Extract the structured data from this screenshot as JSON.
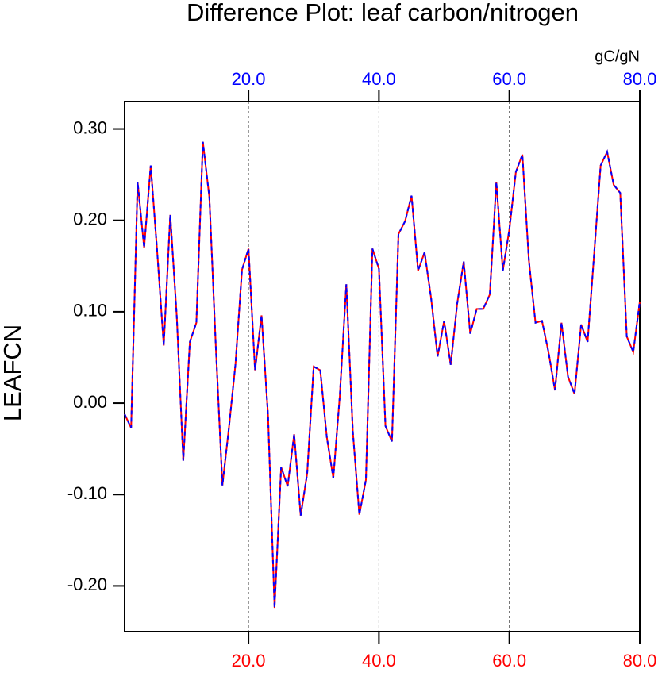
{
  "chart_data": {
    "type": "line",
    "title": "Difference Plot: leaf carbon/nitrogen",
    "units_label": "gC/gN",
    "y_label": "LEAFCN",
    "x": [
      1,
      2,
      3,
      4,
      5,
      6,
      7,
      8,
      9,
      10,
      11,
      12,
      13,
      14,
      15,
      16,
      17,
      18,
      19,
      20,
      21,
      22,
      23,
      24,
      25,
      26,
      27,
      28,
      29,
      30,
      31,
      32,
      33,
      34,
      35,
      36,
      37,
      38,
      39,
      40,
      41,
      42,
      43,
      44,
      45,
      46,
      47,
      48,
      49,
      50,
      51,
      52,
      53,
      54,
      55,
      56,
      57,
      58,
      59,
      60,
      61,
      62,
      63,
      64,
      65,
      66,
      67,
      68,
      69,
      70,
      71,
      72,
      73,
      74,
      75,
      76,
      77,
      78,
      79,
      80
    ],
    "series": [
      {
        "color": "#ff0000",
        "dash": false,
        "values": [
          -0.012,
          -0.027,
          0.242,
          0.17,
          0.26,
          0.165,
          0.063,
          0.206,
          0.095,
          -0.063,
          0.067,
          0.088,
          0.286,
          0.225,
          0.06,
          -0.09,
          -0.027,
          0.043,
          0.146,
          0.169,
          0.036,
          0.096,
          -0.014,
          -0.224,
          -0.07,
          -0.091,
          -0.034,
          -0.123,
          -0.077,
          0.04,
          0.036,
          -0.037,
          -0.082,
          0.008,
          0.13,
          -0.031,
          -0.122,
          -0.084,
          0.169,
          0.147,
          -0.025,
          -0.042,
          0.185,
          0.199,
          0.227,
          0.145,
          0.165,
          0.115,
          0.051,
          0.09,
          0.042,
          0.109,
          0.155,
          0.076,
          0.103,
          0.103,
          0.119,
          0.242,
          0.145,
          0.19,
          0.253,
          0.272,
          0.156,
          0.088,
          0.09,
          0.056,
          0.014,
          0.088,
          0.029,
          0.01,
          0.086,
          0.067,
          0.163,
          0.26,
          0.275,
          0.239,
          0.23,
          0.073,
          0.056,
          0.111
        ]
      },
      {
        "color": "#0000ff",
        "dash": true,
        "values": [
          -0.012,
          -0.027,
          0.242,
          0.17,
          0.26,
          0.165,
          0.063,
          0.206,
          0.095,
          -0.063,
          0.067,
          0.088,
          0.286,
          0.225,
          0.06,
          -0.09,
          -0.027,
          0.043,
          0.146,
          0.169,
          0.036,
          0.096,
          -0.014,
          -0.224,
          -0.07,
          -0.091,
          -0.034,
          -0.123,
          -0.077,
          0.04,
          0.036,
          -0.037,
          -0.082,
          0.008,
          0.13,
          -0.031,
          -0.122,
          -0.084,
          0.169,
          0.147,
          -0.025,
          -0.042,
          0.185,
          0.199,
          0.227,
          0.145,
          0.165,
          0.115,
          0.051,
          0.09,
          0.042,
          0.109,
          0.155,
          0.076,
          0.103,
          0.103,
          0.119,
          0.242,
          0.145,
          0.19,
          0.253,
          0.272,
          0.156,
          0.088,
          0.09,
          0.056,
          0.014,
          0.088,
          0.029,
          0.01,
          0.086,
          0.067,
          0.163,
          0.26,
          0.275,
          0.239,
          0.23,
          0.073,
          0.056,
          0.111
        ]
      }
    ],
    "xlim": [
      1,
      80
    ],
    "ylim": [
      -0.25,
      0.33
    ],
    "xticks": [
      {
        "value": 20,
        "label": "20.0"
      },
      {
        "value": 40,
        "label": "40.0"
      },
      {
        "value": 60,
        "label": "60.0"
      },
      {
        "value": 80,
        "label": "80.0"
      }
    ],
    "xtick_color": "#ff0000",
    "x2ticks": [
      {
        "value": 20,
        "label": "20.0"
      },
      {
        "value": 40,
        "label": "40.0"
      },
      {
        "value": 60,
        "label": "60.0"
      },
      {
        "value": 80,
        "label": "80.0"
      }
    ],
    "x2tick_color": "#0000ff",
    "yticks": [
      {
        "value": -0.2,
        "label": "-0.20"
      },
      {
        "value": -0.1,
        "label": "-0.10"
      },
      {
        "value": 0,
        "label": "0.00"
      },
      {
        "value": 0.1,
        "label": "0.10"
      },
      {
        "value": 0.2,
        "label": "0.20"
      },
      {
        "value": 0.3,
        "label": "0.30"
      }
    ],
    "grid": "x"
  }
}
